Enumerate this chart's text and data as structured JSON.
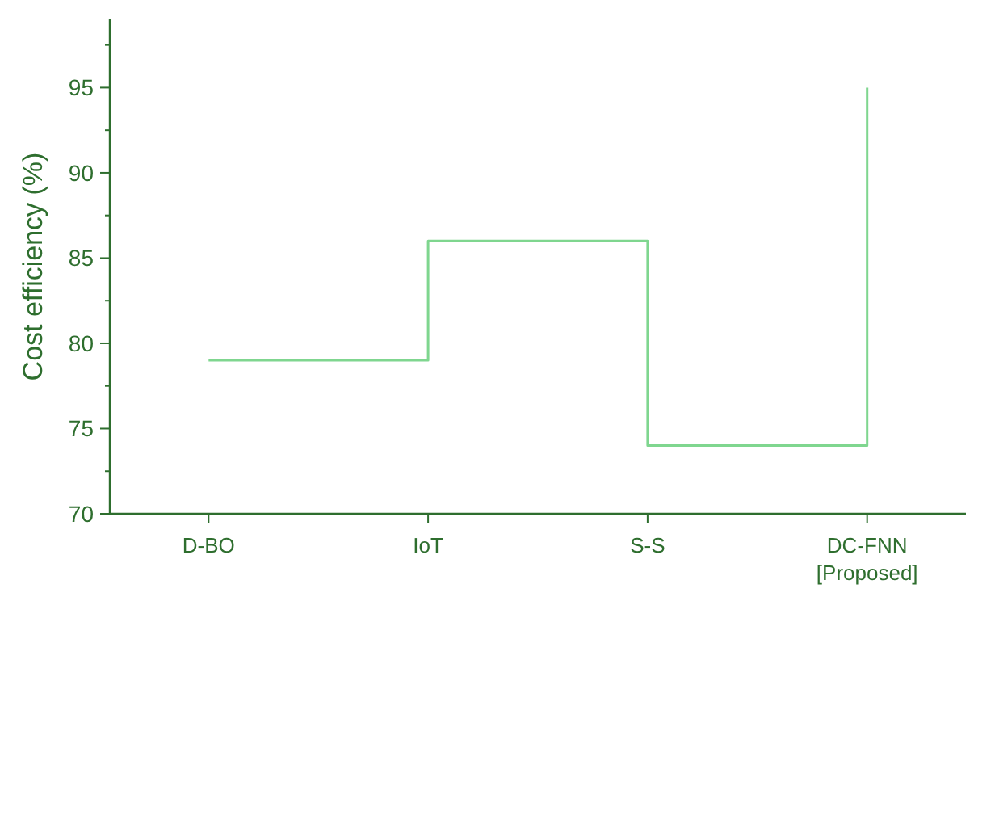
{
  "chart_data": {
    "type": "step",
    "ylabel": "Cost efficiency (%)",
    "categories": [
      "D-BO",
      "IoT",
      "S-S",
      "DC-FNN [Proposed]"
    ],
    "values": [
      79,
      86,
      74,
      95
    ],
    "color": "#7fd68f",
    "ylim": [
      70,
      99
    ],
    "yticks": [
      70,
      {
        "value": 72.5,
        "label": null
      },
      75,
      {
        "value": 77.5,
        "label": null
      },
      80,
      {
        "value": 82.5,
        "label": null
      },
      85,
      {
        "value": 87.5,
        "label": null
      },
      90,
      {
        "value": 92.5,
        "label": null
      },
      95,
      {
        "value": 97.5,
        "label": null
      }
    ]
  }
}
